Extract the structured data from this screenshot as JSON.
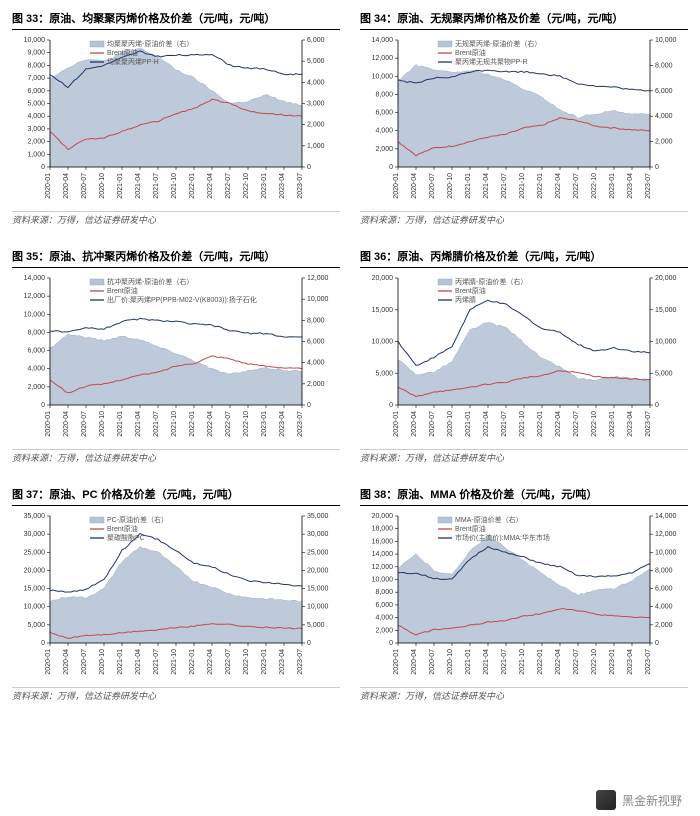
{
  "source_text": "资料来源：万得，信达证券研发中心",
  "watermark_text": "黑金新视野",
  "x_labels": [
    "2020-01",
    "2020-04",
    "2020-07",
    "2020-10",
    "2021-01",
    "2021-04",
    "2021-07",
    "2021-10",
    "2022-01",
    "2022-04",
    "2022-07",
    "2022-10",
    "2023-01",
    "2023-04",
    "2023-07"
  ],
  "colors": {
    "area": "#b7c3d6",
    "area_stroke": "#8f9fb8",
    "red": "#c44a4a",
    "navy": "#22346d",
    "axis": "#000000",
    "grid": "#e4e4e4",
    "tick_text": "#333333",
    "legend_text": "#555555"
  },
  "fontsize": {
    "title": 11,
    "tick": 7,
    "legend": 7,
    "source": 9
  },
  "charts": [
    {
      "title": "图 33：原油、均聚聚丙烯价格及价差（元/吨，元/吨）",
      "left_ylim": [
        0,
        10000
      ],
      "left_step": 1000,
      "right_ylim": [
        0,
        6000
      ],
      "right_step": 1000,
      "legend": [
        {
          "label": "均聚聚丙烯-原油价差（右）",
          "type": "area"
        },
        {
          "label": "Brent原油",
          "type": "line",
          "color": "#c44a4a"
        },
        {
          "label": "均聚聚丙烯PP-H",
          "type": "line",
          "color": "#22346d"
        }
      ],
      "area_right": [
        4200,
        4700,
        5100,
        5000,
        5400,
        5600,
        5200,
        4600,
        4200,
        3600,
        3000,
        3100,
        3400,
        3100,
        2900
      ],
      "line1_left": [
        2800,
        1400,
        2200,
        2300,
        2800,
        3300,
        3600,
        4200,
        4600,
        5300,
        5000,
        4400,
        4200,
        4100,
        4000
      ],
      "line2_left": [
        7300,
        6300,
        7700,
        8000,
        8600,
        9100,
        8700,
        8800,
        8800,
        8900,
        8000,
        7800,
        7700,
        7300,
        7300
      ]
    },
    {
      "title": "图 34：原油、无规聚丙烯价格及价差（元/吨，元/吨）",
      "left_ylim": [
        0,
        14000
      ],
      "left_step": 2000,
      "right_ylim": [
        0,
        10000
      ],
      "right_step": 2000,
      "legend": [
        {
          "label": "无规聚丙烯-原油价差（右）",
          "type": "area"
        },
        {
          "label": "Brent原油",
          "type": "line",
          "color": "#c44a4a"
        },
        {
          "label": "聚丙烯无规共聚物PP-R",
          "type": "line",
          "color": "#22346d"
        }
      ],
      "area_right": [
        6800,
        8000,
        7700,
        7400,
        7600,
        7300,
        6800,
        6100,
        5500,
        4500,
        3900,
        4200,
        4400,
        4200,
        4100
      ],
      "line1_left": [
        2800,
        1300,
        2100,
        2300,
        2800,
        3300,
        3600,
        4300,
        4600,
        5400,
        5100,
        4500,
        4300,
        4100,
        4000
      ],
      "line2_left": [
        9600,
        9200,
        9800,
        9900,
        10500,
        10700,
        10500,
        10500,
        10300,
        10000,
        9200,
        8900,
        8800,
        8500,
        8400
      ]
    },
    {
      "title": "图 35：原油、抗冲聚丙烯价格及价差（元/吨，元/吨）",
      "left_ylim": [
        0,
        14000
      ],
      "left_step": 2000,
      "right_ylim": [
        0,
        12000
      ],
      "right_step": 2000,
      "legend": [
        {
          "label": "抗冲聚丙烯-原油价差（右）",
          "type": "area"
        },
        {
          "label": "Brent原油",
          "type": "line",
          "color": "#c44a4a"
        },
        {
          "label": "出厂价:聚丙烯PP(PPB-M02-V(K8003)):扬子石化",
          "type": "line",
          "color": "#22346d"
        }
      ],
      "area_right": [
        5400,
        6700,
        6400,
        6100,
        6500,
        6200,
        5500,
        4900,
        4200,
        3400,
        2900,
        3200,
        3500,
        3300,
        3200
      ],
      "line1_left": [
        2800,
        1300,
        2100,
        2300,
        2800,
        3300,
        3600,
        4300,
        4600,
        5400,
        5100,
        4500,
        4300,
        4100,
        4000
      ],
      "line2_left": [
        8200,
        8000,
        8500,
        8400,
        9200,
        9500,
        9300,
        9200,
        8900,
        8800,
        8200,
        7900,
        7900,
        7500,
        7500
      ]
    },
    {
      "title": "图 36：原油、丙烯腈价格及价差（元/吨，元/吨）",
      "left_ylim": [
        0,
        20000
      ],
      "left_step": 5000,
      "right_ylim": [
        0,
        20000
      ],
      "right_step": 5000,
      "legend": [
        {
          "label": "丙烯腈-原油价差（右）",
          "type": "area"
        },
        {
          "label": "Brent原油",
          "type": "line",
          "color": "#c44a4a"
        },
        {
          "label": "丙烯腈",
          "type": "line",
          "color": "#22346d"
        }
      ],
      "area_right": [
        7200,
        4800,
        5200,
        6800,
        11800,
        13000,
        12200,
        9800,
        7300,
        6000,
        4200,
        3800,
        4500,
        4200,
        4000
      ],
      "line1_left": [
        2800,
        1300,
        2100,
        2300,
        2800,
        3300,
        3600,
        4300,
        4600,
        5400,
        5100,
        4500,
        4300,
        4100,
        4000
      ],
      "line2_left": [
        10000,
        6200,
        7500,
        9200,
        15000,
        16500,
        15800,
        14000,
        12000,
        11500,
        9500,
        8500,
        9000,
        8500,
        8200
      ]
    },
    {
      "title": "图 37：原油、PC 价格及价差（元/吨，元/吨）",
      "left_ylim": [
        0,
        35000
      ],
      "left_step": 5000,
      "right_ylim": [
        0,
        35000
      ],
      "right_step": 5000,
      "legend": [
        {
          "label": "PC-原油价差（右）",
          "type": "area"
        },
        {
          "label": "Brent原油",
          "type": "line",
          "color": "#c44a4a"
        },
        {
          "label": "聚碳酸酯PC",
          "type": "line",
          "color": "#22346d"
        }
      ],
      "area_right": [
        11500,
        12800,
        12500,
        15000,
        22500,
        26500,
        25000,
        21000,
        17000,
        15500,
        13500,
        12500,
        12200,
        11800,
        11500
      ],
      "line1_left": [
        2800,
        1300,
        2100,
        2300,
        2800,
        3300,
        3600,
        4300,
        4600,
        5400,
        5100,
        4500,
        4300,
        4100,
        4000
      ],
      "line2_left": [
        14500,
        14000,
        14800,
        17500,
        25500,
        30000,
        28500,
        25500,
        22000,
        21000,
        18800,
        17200,
        16700,
        16100,
        15700
      ]
    },
    {
      "title": "图 38：原油、MMA 价格及价差（元/吨，元/吨）",
      "left_ylim": [
        0,
        20000
      ],
      "left_step": 2000,
      "right_ylim": [
        0,
        14000
      ],
      "right_step": 2000,
      "legend": [
        {
          "label": "MMA-原油价差（右）",
          "type": "area"
        },
        {
          "label": "Brent原油",
          "type": "line",
          "color": "#c44a4a"
        },
        {
          "label": "市场价(主流价):MMA:华东市场",
          "type": "line",
          "color": "#22346d"
        }
      ],
      "area_right": [
        8200,
        9800,
        8000,
        7500,
        10200,
        11800,
        10500,
        9000,
        7600,
        6400,
        5300,
        5800,
        6000,
        6800,
        8200
      ],
      "line1_left": [
        2800,
        1300,
        2100,
        2300,
        2800,
        3300,
        3600,
        4300,
        4600,
        5400,
        5100,
        4500,
        4300,
        4100,
        4000
      ],
      "line2_left": [
        11000,
        11000,
        10200,
        10000,
        13200,
        15200,
        14200,
        13500,
        12500,
        12000,
        10600,
        10500,
        10500,
        11100,
        12500
      ]
    }
  ]
}
